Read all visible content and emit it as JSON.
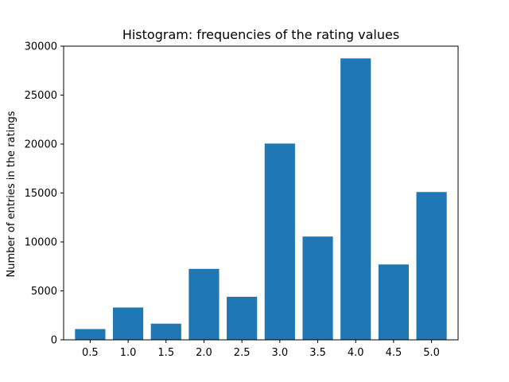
{
  "chart_data": {
    "type": "bar",
    "title": "Histogram: frequencies of the rating values",
    "xlabel": "",
    "ylabel": "Number of entries in the ratings",
    "categories": [
      "0.5",
      "1.0",
      "1.5",
      "2.0",
      "2.5",
      "3.0",
      "3.5",
      "4.0",
      "4.5",
      "5.0"
    ],
    "values": [
      1100,
      3300,
      1650,
      7250,
      4400,
      20050,
      10550,
      28750,
      7700,
      15100
    ],
    "ylim": [
      0,
      30000
    ],
    "yticks": [
      0,
      5000,
      10000,
      15000,
      20000,
      25000,
      30000
    ],
    "grid": false,
    "bar_color": "#1f77b4"
  }
}
